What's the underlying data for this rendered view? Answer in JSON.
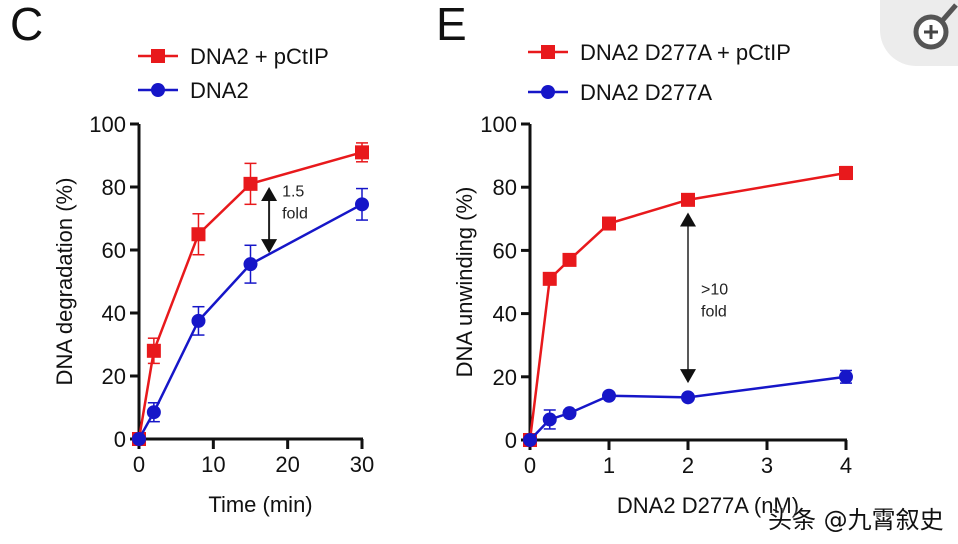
{
  "panels": [
    {
      "letter": "C"
    },
    {
      "letter": "E"
    }
  ],
  "watermark": "头条 @九霄叙史",
  "zoom_icon": "zoom-in-icon",
  "colors": {
    "red": "#e8191c",
    "blue": "#1616c8",
    "axis": "#111111"
  },
  "chart_data": [
    {
      "type": "line",
      "xlabel": "Time (min)",
      "ylabel": "DNA degradation (%)",
      "xlim": [
        0,
        30
      ],
      "ylim": [
        0,
        100
      ],
      "xticks": [
        0,
        10,
        20,
        30
      ],
      "yticks": [
        0,
        20,
        40,
        60,
        80,
        100
      ],
      "legend_placement": "top",
      "grid": false,
      "x": [
        0,
        2,
        8,
        15,
        30
      ],
      "series": [
        {
          "name": "DNA2 + pCtIP",
          "color": "#e8191c",
          "marker": "square",
          "values": [
            0,
            28,
            65,
            81,
            91
          ],
          "errors": [
            0,
            4,
            6.5,
            6.5,
            3
          ]
        },
        {
          "name": "DNA2",
          "color": "#1616c8",
          "marker": "circle",
          "values": [
            0,
            8.5,
            37.5,
            55.5,
            74.5
          ],
          "errors": [
            0,
            3,
            4.5,
            6,
            5
          ]
        }
      ],
      "annotation": {
        "text_lines": [
          "1.5",
          "fold"
        ],
        "x": 17.5,
        "y_from": 80,
        "y_to": 59
      }
    },
    {
      "type": "line",
      "xlabel": "DNA2 D277A (nM)",
      "ylabel": "DNA unwinding (%)",
      "xlim": [
        0,
        4
      ],
      "ylim": [
        0,
        100
      ],
      "xticks": [
        0,
        1,
        2,
        3,
        4
      ],
      "yticks": [
        0,
        20,
        40,
        60,
        80,
        100
      ],
      "legend_placement": "top",
      "grid": false,
      "x": [
        0,
        0.25,
        0.5,
        1,
        2,
        4
      ],
      "series": [
        {
          "name": "DNA2 D277A + pCtIP",
          "color": "#e8191c",
          "marker": "square",
          "values": [
            0,
            51,
            57,
            68.5,
            76,
            84.5
          ],
          "errors": [
            0,
            1,
            1,
            1.5,
            1,
            2
          ]
        },
        {
          "name": "DNA2 D277A",
          "color": "#1616c8",
          "marker": "circle",
          "values": [
            0,
            6.5,
            8.5,
            14,
            13.5,
            20
          ],
          "errors": [
            0,
            3,
            1,
            1,
            1,
            2
          ]
        }
      ],
      "annotation": {
        "text_lines": [
          ">10",
          "fold"
        ],
        "x": 2,
        "y_from": 72,
        "y_to": 18
      }
    }
  ]
}
